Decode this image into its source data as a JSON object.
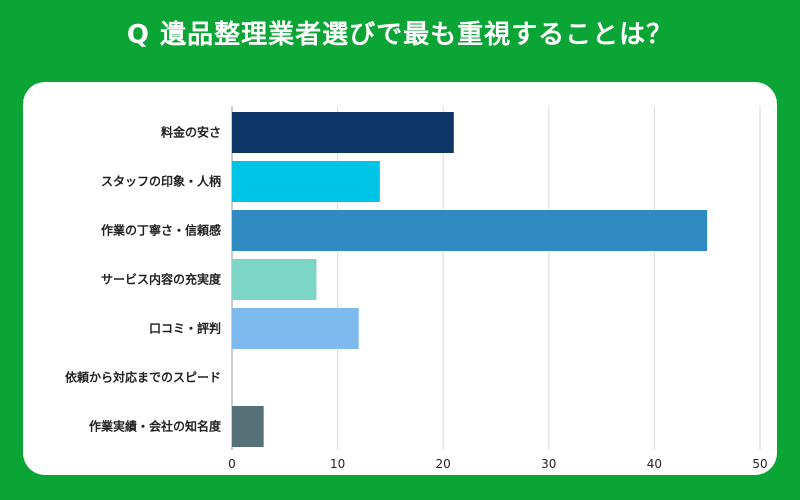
{
  "title": "Q 遺品整理業者選びで最も重視することは？",
  "colors": {
    "background": "#0aa535",
    "card": "#ffffff",
    "grid": "#d9d9d9"
  },
  "chart_data": {
    "type": "bar",
    "orientation": "horizontal",
    "categories": [
      "料金の安さ",
      "スタッフの印象・人柄",
      "作業の丁寧さ・信頼感",
      "サービス内容の充実度",
      "口コミ・評判",
      "依頼から対応までのスピード",
      "作業実績・会社の知名度"
    ],
    "values": [
      21,
      14,
      45,
      8,
      12,
      0,
      3
    ],
    "bar_colors": [
      "#0d3566",
      "#00c4e6",
      "#2f8bc1",
      "#7dd5c5",
      "#7fbaee",
      "#cccccc",
      "#567178"
    ],
    "xlim": [
      0,
      50
    ],
    "xticks": [
      "0",
      "10",
      "20",
      "30",
      "40",
      "50"
    ],
    "grid": true
  }
}
